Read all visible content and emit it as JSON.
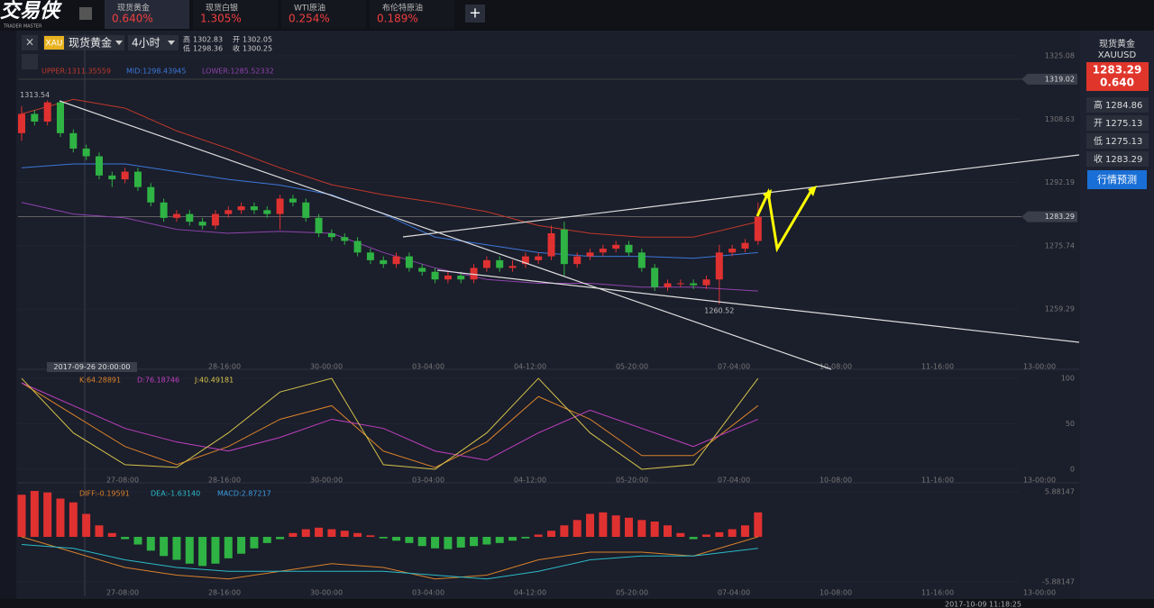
{
  "header": {
    "logo": "交易侠",
    "logo_sub": "TRADER MASTER",
    "add": "+",
    "tabs": [
      {
        "name": "现货黄金",
        "change": "0.640%"
      },
      {
        "name": "现货白银",
        "change": "1.305%"
      },
      {
        "name": "WTI原油",
        "change": "0.254%"
      },
      {
        "name": "布伦特原油",
        "change": "0.189%"
      }
    ]
  },
  "toolbar": {
    "close": "×",
    "symbol_code": "XAU",
    "symbol": "现货黄金",
    "period": "4小时",
    "ohlc": [
      {
        "label": "高",
        "value": "1302.83"
      },
      {
        "label": "低",
        "value": "1298.36"
      },
      {
        "label": "开",
        "value": "1302.05"
      },
      {
        "label": "收",
        "value": "1300.25"
      }
    ]
  },
  "sidebar": {
    "title": "现货黄金",
    "code": "XAUUSD",
    "price": "1283.29",
    "change": "0.640",
    "stats": [
      {
        "label": "高",
        "value": "1284.86"
      },
      {
        "label": "开",
        "value": "1275.13"
      },
      {
        "label": "低",
        "value": "1275.13"
      },
      {
        "label": "收",
        "value": "1283.29"
      }
    ],
    "button": "行情预测"
  },
  "status": {
    "time": "2017-10-09 11:18:25"
  },
  "chart_data": [
    {
      "type": "candlestick",
      "ylim": [
        1246,
        1330.7
      ],
      "yticks": [
        1259.29,
        1275.74,
        1292.19,
        1308.63,
        1325.08
      ],
      "price_lines": [
        1319.02,
        1283.29
      ],
      "annotations": [
        {
          "text": "1313.54",
          "index": 2
        },
        {
          "text": "1260.52",
          "index": 54
        }
      ],
      "crosshair_label": "2017-09-26 20:00:00",
      "xlabels": [
        "28-16:00",
        "30-00:00",
        "03-04:00",
        "04-12:00",
        "05-20:00",
        "07-04:00",
        "10-08:00",
        "11-16:00",
        "13-00:00"
      ],
      "candles": {
        "open": [
          1305,
          1310,
          1308,
          1313,
          1305,
          1301,
          1299,
          1294,
          1293,
          1295,
          1291,
          1287,
          1283,
          1284,
          1282,
          1281,
          1284,
          1285,
          1286,
          1285,
          1284,
          1288,
          1287,
          1283,
          1279,
          1278,
          1277,
          1274,
          1272,
          1271,
          1273,
          1270,
          1269,
          1267,
          1268,
          1267,
          1270,
          1272,
          1270,
          1271,
          1272,
          1273,
          1280,
          1271,
          1273,
          1274,
          1275,
          1276,
          1274,
          1270,
          1265,
          1266,
          1266,
          1265.5,
          1267,
          1274,
          1275,
          1277
        ],
        "close": [
          1310,
          1308,
          1313,
          1305,
          1301,
          1299,
          1294,
          1293,
          1295,
          1291,
          1287,
          1283,
          1284,
          1282,
          1281,
          1284,
          1285,
          1286,
          1285,
          1284,
          1288,
          1287,
          1283,
          1279,
          1278,
          1277,
          1274,
          1272,
          1271,
          1273,
          1270,
          1269,
          1267,
          1268,
          1267,
          1270,
          1272,
          1270,
          1270.5,
          1273,
          1273,
          1279,
          1271,
          1273,
          1274,
          1275,
          1276,
          1274,
          1270,
          1265,
          1266,
          1266,
          1265.5,
          1267,
          1274,
          1275,
          1276.5,
          1283.29
        ],
        "high": [
          1312,
          1311,
          1313.54,
          1313.5,
          1306,
          1302,
          1300,
          1295,
          1296,
          1296,
          1292,
          1288,
          1285,
          1285,
          1283,
          1285,
          1286,
          1287,
          1287,
          1286,
          1289,
          1289,
          1288,
          1284,
          1280,
          1279,
          1278,
          1275,
          1273,
          1274,
          1274,
          1271,
          1270,
          1269,
          1269,
          1271,
          1273,
          1273,
          1272,
          1274,
          1274,
          1281,
          1282,
          1274,
          1275,
          1276,
          1277,
          1277,
          1275,
          1271,
          1267,
          1267,
          1267,
          1268,
          1276,
          1276,
          1277.5,
          1287
        ],
        "low": [
          1303,
          1307,
          1307,
          1304,
          1300,
          1298,
          1293,
          1291,
          1292,
          1290,
          1286,
          1282,
          1282,
          1281,
          1280,
          1280,
          1283,
          1284,
          1284,
          1283,
          1280,
          1286,
          1282,
          1278,
          1277,
          1276,
          1273,
          1271,
          1270,
          1270,
          1269,
          1268,
          1266,
          1266,
          1266,
          1266,
          1269,
          1269,
          1269,
          1270,
          1271,
          1272,
          1268,
          1270,
          1272,
          1273,
          1274,
          1273,
          1269,
          1264,
          1264,
          1265,
          1264.5,
          1264.5,
          1260.52,
          1273,
          1274,
          1276
        ]
      },
      "series": [
        {
          "name": "UPPER:1311.35559",
          "color": "#c0392b",
          "x": [
            0,
            4,
            8,
            12,
            16,
            20,
            24,
            28,
            32,
            36,
            40,
            44,
            48,
            52,
            57
          ],
          "values": [
            1310,
            1313.8,
            1311.5,
            1305.6,
            1301,
            1296,
            1291.6,
            1289,
            1287,
            1284.6,
            1281,
            1279,
            1278,
            1278,
            1282
          ]
        },
        {
          "name": "MID:1298.43945",
          "color": "#3c78d8",
          "x": [
            0,
            4,
            8,
            12,
            16,
            20,
            24,
            28,
            32,
            36,
            40,
            44,
            48,
            52,
            57
          ],
          "values": [
            1296,
            1297,
            1297,
            1295,
            1293,
            1291.5,
            1289,
            1284,
            1278,
            1276,
            1274,
            1273,
            1273,
            1272.5,
            1274
          ]
        },
        {
          "name": "LOWER:1285.52332",
          "color": "#8e44ad",
          "x": [
            0,
            4,
            8,
            12,
            16,
            20,
            24,
            28,
            32,
            36,
            40,
            44,
            48,
            52,
            57
          ],
          "values": [
            1287,
            1284,
            1283,
            1280,
            1279,
            1279.5,
            1279,
            1274,
            1270,
            1267,
            1266,
            1266,
            1265,
            1265,
            1264
          ]
        }
      ]
    },
    {
      "type": "line",
      "ylim": [
        -7,
        108
      ],
      "yticks": [
        0,
        50,
        100
      ],
      "xlabels": [
        "27-08:00",
        "28-16:00",
        "30-00:00",
        "03-04:00",
        "04-12:00",
        "05-20:00",
        "07-04:00",
        "10-08:00",
        "11-16:00",
        "13-00:00"
      ],
      "series": [
        {
          "name": "K:64.28891",
          "color": "#d9822b",
          "x": [
            0,
            4,
            8,
            12,
            16,
            20,
            24,
            28,
            32,
            36,
            40,
            44,
            48,
            52,
            57
          ],
          "values": [
            95,
            60,
            25,
            5,
            25,
            55,
            70,
            20,
            2,
            30,
            80,
            55,
            15,
            15,
            70
          ]
        },
        {
          "name": "D:76.18746",
          "color": "#c040c0",
          "x": [
            0,
            4,
            8,
            12,
            16,
            20,
            24,
            28,
            32,
            36,
            40,
            44,
            48,
            52,
            57
          ],
          "values": [
            95,
            70,
            45,
            30,
            20,
            35,
            55,
            45,
            20,
            10,
            40,
            65,
            45,
            25,
            55
          ]
        },
        {
          "name": "J:40.49181",
          "color": "#d4c34a",
          "x": [
            0,
            4,
            8,
            12,
            16,
            20,
            24,
            28,
            32,
            36,
            40,
            44,
            48,
            52,
            57
          ],
          "values": [
            100,
            40,
            5,
            2,
            40,
            85,
            100,
            5,
            0,
            40,
            100,
            40,
            0,
            5,
            100
          ]
        }
      ]
    },
    {
      "type": "macd",
      "ylim": [
        -7.76,
        6.59
      ],
      "yticks": [
        -5.88147,
        5.88147
      ],
      "xlabels": [
        "27-08:00",
        "28-16:00",
        "30-00:00",
        "03-04:00",
        "04-12:00",
        "05-20:00",
        "07-04:00",
        "10-08:00",
        "11-16:00",
        "13-00:00"
      ],
      "histogram": {
        "name": "MACD:2.87217",
        "color": "#3c9be0",
        "values": [
          5.5,
          6,
          5.8,
          5,
          4.5,
          3,
          1.5,
          0.5,
          -0.3,
          -1,
          -1.8,
          -2.5,
          -3,
          -3.5,
          -3.8,
          -3.5,
          -2.8,
          -2.2,
          -1.5,
          -0.8,
          -0.3,
          0.5,
          1,
          1.2,
          1,
          0.8,
          0.5,
          0.2,
          -0.2,
          -0.5,
          -0.8,
          -1.2,
          -1.5,
          -1.6,
          -1.4,
          -1.2,
          -1,
          -0.8,
          -0.5,
          -0.2,
          0.3,
          0.8,
          1.5,
          2.2,
          3,
          3.2,
          2.8,
          2.5,
          2.2,
          2,
          1.5,
          0.5,
          -0.3,
          0.3,
          0.6,
          1,
          1.5,
          3.2
        ]
      },
      "series": [
        {
          "name": "DIFF:-0.19591",
          "color": "#d9822b",
          "x": [
            0,
            4,
            8,
            12,
            16,
            20,
            24,
            28,
            32,
            36,
            40,
            44,
            48,
            52,
            57
          ],
          "values": [
            0,
            -2,
            -4,
            -5,
            -5.5,
            -4.5,
            -3.5,
            -4,
            -5.5,
            -5,
            -3,
            -2,
            -2,
            -2.5,
            0
          ]
        },
        {
          "name": "DEA:-1.63140",
          "color": "#2bbbc9",
          "x": [
            0,
            4,
            8,
            12,
            16,
            20,
            24,
            28,
            32,
            36,
            40,
            44,
            48,
            52,
            57
          ],
          "values": [
            -1,
            -1.5,
            -3,
            -4,
            -4.5,
            -4.5,
            -4.5,
            -4.5,
            -5,
            -5.5,
            -4.5,
            -3,
            -2.5,
            -2.5,
            -1.5
          ]
        }
      ]
    }
  ]
}
